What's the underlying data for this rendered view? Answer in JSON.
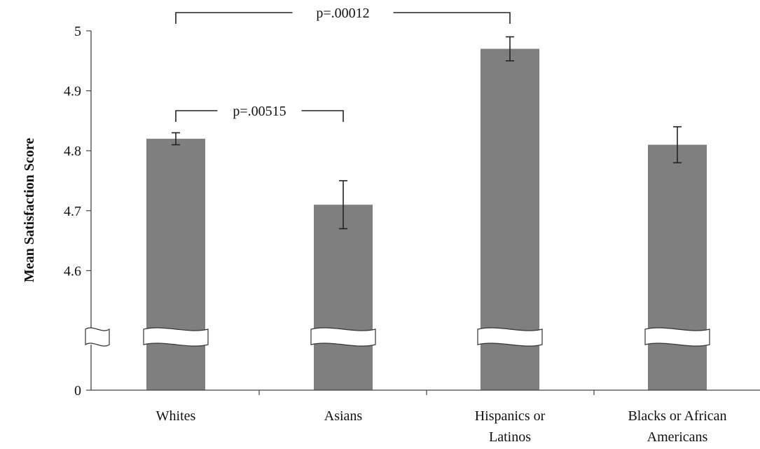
{
  "chart_data": {
    "type": "bar",
    "title": "",
    "xlabel": "",
    "ylabel": "Mean Satisfaction Score",
    "ylim": [
      4.5,
      5.0
    ],
    "axis_break": true,
    "y_ticks": [
      "0",
      "4.6",
      "4.7",
      "4.8",
      "4.9",
      "5"
    ],
    "categories": [
      "Whites",
      "Asians",
      "Hispanics or Latinos",
      "Blacks or African Americans"
    ],
    "category_lines": [
      [
        "Whites"
      ],
      [
        "Asians"
      ],
      [
        "Hispanics or",
        "Latinos"
      ],
      [
        "Blacks or African",
        "Americans"
      ]
    ],
    "values": [
      4.82,
      4.71,
      4.97,
      4.81
    ],
    "error_low": [
      4.81,
      4.67,
      4.95,
      4.78
    ],
    "error_high": [
      4.83,
      4.75,
      4.99,
      4.84
    ],
    "bar_color": "#7f7f7f",
    "grid": false,
    "annotations": [
      {
        "text": "p=.00012",
        "from": "Whites",
        "to": "Hispanics or Latinos"
      },
      {
        "text": "p=.00515",
        "from": "Whites",
        "to": "Asians"
      }
    ]
  }
}
